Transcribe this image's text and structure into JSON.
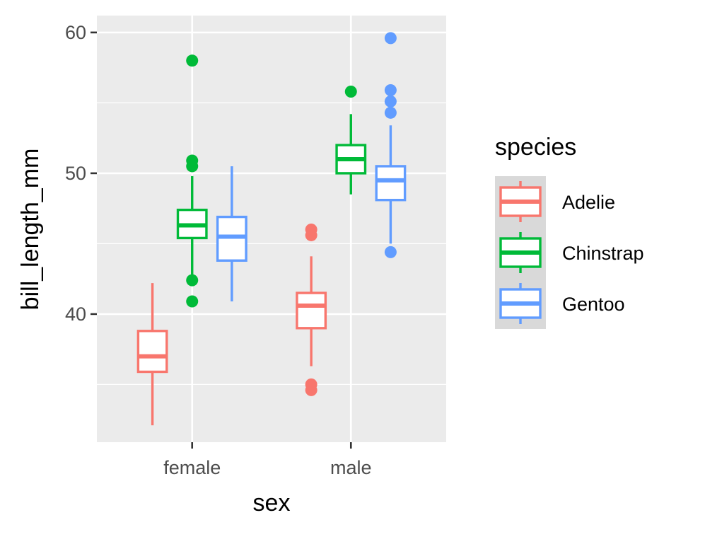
{
  "chart_data": {
    "type": "box",
    "title": "",
    "xlabel": "sex",
    "ylabel": "bill_length_mm",
    "categories": [
      "female",
      "male"
    ],
    "y_ticks": [
      40,
      50,
      60
    ],
    "y_tick_labels": [
      "40",
      "50",
      "60"
    ],
    "ylim": [
      30.9,
      61.2
    ],
    "grid": true,
    "legend": {
      "title": "species",
      "position": "right"
    },
    "series": [
      {
        "name": "Adelie",
        "color": "#F8766D",
        "boxes": [
          {
            "category": "female",
            "lower_whisker": 32.1,
            "q1": 35.9,
            "median": 37.0,
            "q3": 38.8,
            "upper_whisker": 42.2,
            "outliers": []
          },
          {
            "category": "male",
            "lower_whisker": 36.3,
            "q1": 39.0,
            "median": 40.6,
            "q3": 41.5,
            "upper_whisker": 44.1,
            "outliers": [
              34.6,
              35.0,
              45.6,
              46.0
            ]
          }
        ]
      },
      {
        "name": "Chinstrap",
        "color": "#00BA38",
        "boxes": [
          {
            "category": "female",
            "lower_whisker": 42.4,
            "q1": 45.4,
            "median": 46.3,
            "q3": 47.4,
            "upper_whisker": 49.8,
            "outliers": [
              40.9,
              42.4,
              50.5,
              50.9,
              58.0
            ]
          },
          {
            "category": "male",
            "lower_whisker": 48.5,
            "q1": 50.0,
            "median": 51.0,
            "q3": 52.0,
            "upper_whisker": 54.2,
            "outliers": [
              55.8
            ]
          }
        ]
      },
      {
        "name": "Gentoo",
        "color": "#619CFF",
        "boxes": [
          {
            "category": "female",
            "lower_whisker": 40.9,
            "q1": 43.8,
            "median": 45.5,
            "q3": 46.9,
            "upper_whisker": 50.5,
            "outliers": []
          },
          {
            "category": "male",
            "lower_whisker": 45.0,
            "q1": 48.1,
            "median": 49.5,
            "q3": 50.5,
            "upper_whisker": 53.4,
            "outliers": [
              44.4,
              54.3,
              55.1,
              55.9,
              59.6
            ]
          }
        ]
      }
    ]
  }
}
